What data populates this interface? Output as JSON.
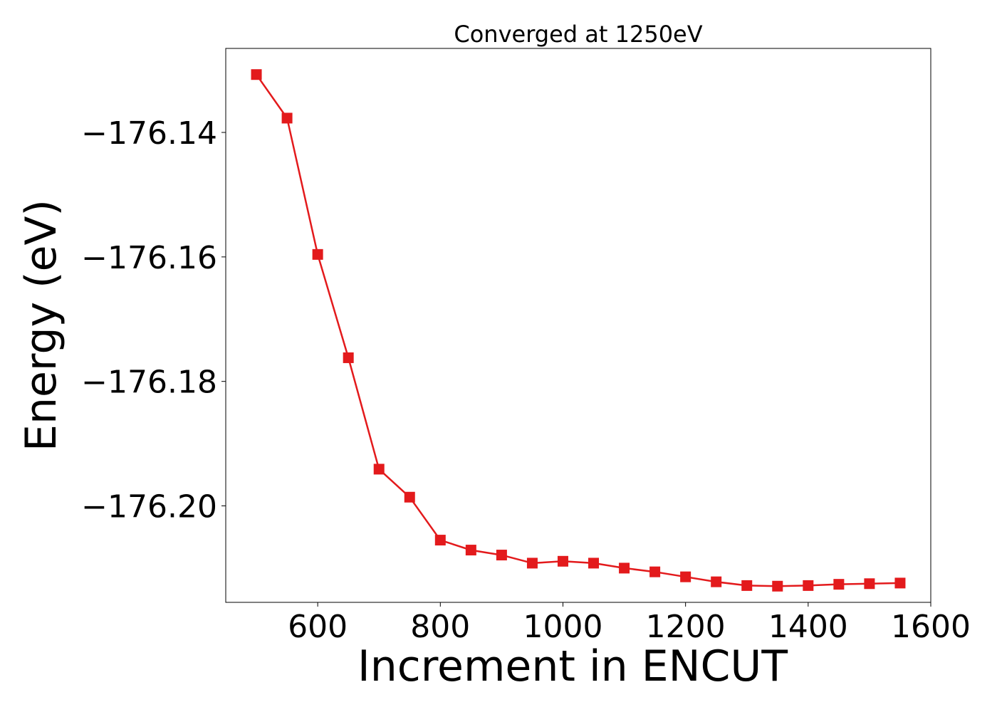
{
  "chart_data": {
    "type": "line",
    "title": "Converged at 1250eV",
    "xlabel": "Increment in ENCUT",
    "ylabel": "Energy (eV)",
    "xlim": [
      450,
      1600
    ],
    "ylim": [
      -176.2155,
      -176.1265
    ],
    "xticks": [
      600,
      800,
      1000,
      1200,
      1400,
      1600
    ],
    "xtick_labels": [
      "600",
      "800",
      "1000",
      "1200",
      "1400",
      "1600"
    ],
    "yticks": [
      -176.14,
      -176.16,
      -176.18,
      -176.2
    ],
    "ytick_labels": [
      "−176.14",
      "−176.16",
      "−176.18",
      "−176.20"
    ],
    "grid": false,
    "legend": "none",
    "series": [
      {
        "color": "#e31a1c",
        "marker": "square",
        "x": [
          500,
          550,
          600,
          650,
          700,
          750,
          800,
          850,
          900,
          950,
          1000,
          1050,
          1100,
          1150,
          1200,
          1250,
          1300,
          1350,
          1400,
          1450,
          1500,
          1550
        ],
        "y": [
          -176.1307,
          -176.1377,
          -176.1596,
          -176.1762,
          -176.1941,
          -176.1986,
          -176.2055,
          -176.2071,
          -176.2079,
          -176.2092,
          -176.2089,
          -176.2092,
          -176.21,
          -176.2106,
          -176.2114,
          -176.2122,
          -176.2128,
          -176.2129,
          -176.2128,
          -176.2126,
          -176.2125,
          -176.2124
        ]
      }
    ]
  }
}
